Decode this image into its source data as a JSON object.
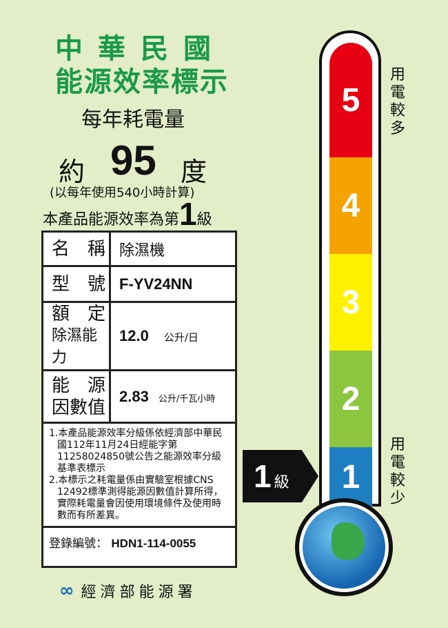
{
  "header": {
    "line1": "中華民國",
    "line2": "能源效率標示"
  },
  "consumption": {
    "label": "每年耗電量",
    "prefix": "約",
    "value": "95",
    "unit": "度",
    "note": "(以每年使用540小時計算)"
  },
  "grade_statement": {
    "prefix": "本產品能源效率為第",
    "grade": "1",
    "suffix": "級"
  },
  "table": {
    "name_label": "名　稱",
    "name_value": "除濕機",
    "model_label": "型　號",
    "model_value": "F-YV24NN",
    "capacity_label1": "額　定",
    "capacity_label2": "除濕能力",
    "capacity_value": "12.0",
    "capacity_unit": "公升/日",
    "factor_label1": "能　源",
    "factor_label2": "因數值",
    "factor_value": "2.83",
    "factor_unit": "公升/千瓦小時",
    "notes": [
      "1.本產品能源效率分級係依經濟部中華民國112年11月24日經能字第11258024850號公告之能源效率分級基準表標示",
      "2.本標示之耗電量係由實驗室根據CNS 12492標準測得能源因數值計算所得，實際耗電量會因使用環境條件及使用時數而有所差異。"
    ],
    "registration_label": "登錄編號：",
    "registration_value": "HDN1-114-0055"
  },
  "scale": {
    "levels": [
      {
        "n": "5",
        "color": "#e60012"
      },
      {
        "n": "4",
        "color": "#f5a300"
      },
      {
        "n": "3",
        "color": "#fff100"
      },
      {
        "n": "2",
        "color": "#8cc63f"
      },
      {
        "n": "1",
        "color": "#1d7ec2"
      }
    ],
    "more": "用電較多",
    "less": "用電較少",
    "pointer_grade": "1",
    "pointer_unit": "級"
  },
  "footer": {
    "agency": "經濟部能源署",
    "logo": "經濟部能源署 logo"
  }
}
